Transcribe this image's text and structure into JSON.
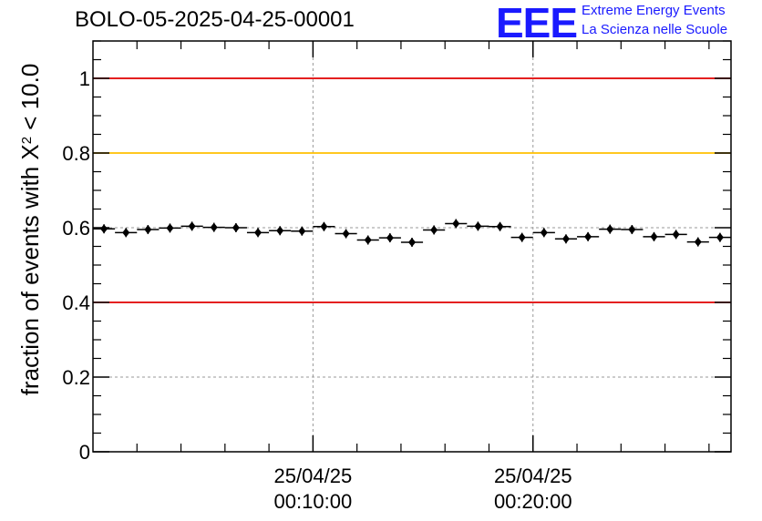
{
  "header": {
    "title": "BOLO-05-2025-04-25-00001"
  },
  "logo": {
    "mark": "EEE",
    "line1": "Extreme Energy Events",
    "line2": "La Scienza nelle Scuole",
    "color": "#1a1aff"
  },
  "chart_data": {
    "type": "scatter",
    "title": "BOLO-05-2025-04-25-00001",
    "ylabel_prefix": "fraction of events with",
    "ylabel_chi": "X",
    "ylabel_sup": "2",
    "ylabel_suffix": "< 10.0",
    "xlabel": "",
    "ylim": [
      0,
      1.1
    ],
    "xlim_minutes": [
      -10,
      19
    ],
    "grid": true,
    "yticks": [
      {
        "value": 0,
        "label": "0"
      },
      {
        "value": 0.2,
        "label": "0.2"
      },
      {
        "value": 0.4,
        "label": "0.4"
      },
      {
        "value": 0.6,
        "label": "0.6"
      },
      {
        "value": 0.8,
        "label": "0.8"
      },
      {
        "value": 1,
        "label": "1"
      }
    ],
    "xticks": [
      {
        "minute": 0,
        "date": "25/04/25",
        "time": "00:10:00"
      },
      {
        "minute": 10,
        "date": "25/04/25",
        "time": "00:20:00"
      }
    ],
    "reference_lines": [
      {
        "value": 1.0,
        "color": "#e00000"
      },
      {
        "value": 0.8,
        "color": "#ffbf00"
      },
      {
        "value": 0.4,
        "color": "#e00000"
      }
    ],
    "bin_width_minutes": 1,
    "series": [
      {
        "color": "#000000",
        "x_minutes": [
          -9.5,
          -8.5,
          -7.5,
          -6.5,
          -5.5,
          -4.5,
          -3.5,
          -2.5,
          -1.5,
          -0.5,
          0.5,
          1.5,
          2.5,
          3.5,
          4.5,
          5.5,
          6.5,
          7.5,
          8.5,
          9.5,
          10.5,
          11.5,
          12.5,
          13.5,
          14.5,
          15.5,
          16.5,
          17.5,
          18.5
        ],
        "values": [
          0.597,
          0.587,
          0.595,
          0.599,
          0.604,
          0.601,
          0.6,
          0.587,
          0.592,
          0.591,
          0.603,
          0.584,
          0.567,
          0.573,
          0.561,
          0.594,
          0.611,
          0.604,
          0.603,
          0.574,
          0.587,
          0.57,
          0.576,
          0.596,
          0.595,
          0.576,
          0.582,
          0.562,
          0.574
        ]
      }
    ]
  }
}
